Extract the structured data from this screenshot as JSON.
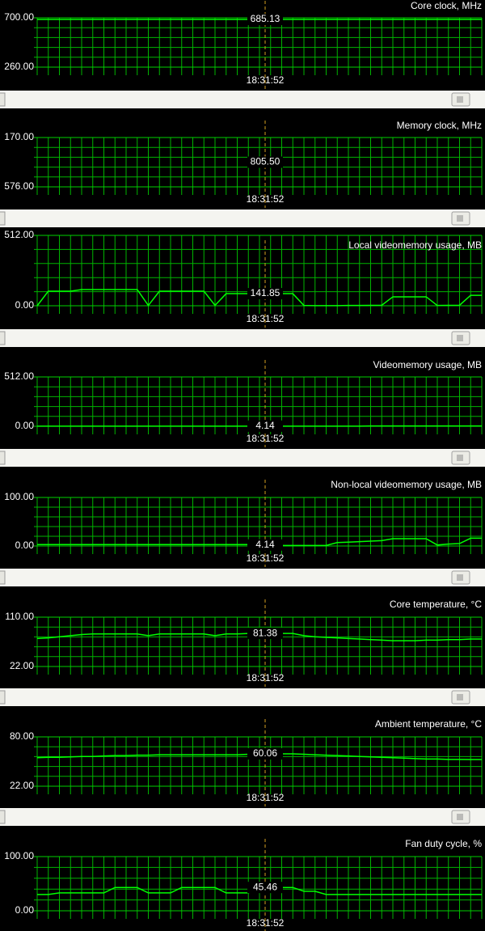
{
  "chart_data": [
    {
      "type": "line",
      "title": "Core clock, MHz",
      "ylim": [
        260,
        700
      ],
      "yticks": [
        {
          "value": 260,
          "label": "260.00"
        },
        {
          "value": 700,
          "label": "700.00"
        }
      ],
      "color": "#00ff00",
      "annotation": "685.13",
      "time": "18:31:52",
      "values": [
        685.13,
        685.13,
        685.13,
        685.13,
        685.13,
        685.13,
        685.13,
        685.13,
        685.13,
        685.13,
        685.13,
        685.13,
        685.13,
        685.13,
        685.13,
        685.13,
        685.13,
        685.13,
        685.13,
        685.13,
        685.13,
        685.13,
        685.13,
        685.13,
        685.13,
        685.13,
        685.13,
        685.13,
        685.13,
        685.13,
        685.13,
        685.13,
        685.13,
        685.13,
        685.13,
        685.13,
        685.13,
        685.13,
        685.13,
        685.13,
        685.13
      ]
    },
    {
      "type": "line",
      "title": "Memory clock, MHz",
      "ylim": [
        576,
        170
      ],
      "yticks": [
        {
          "value": 576,
          "label": "576.00"
        },
        {
          "value": 170,
          "label": "170.00"
        }
      ],
      "color": "#00ff00",
      "annotation": "805.50",
      "time": "18:31:52"
    },
    {
      "type": "line",
      "title": "Local videomemory usage, MB",
      "ylim": [
        0,
        512
      ],
      "yticks": [
        {
          "value": 0,
          "label": "0.00"
        },
        {
          "value": 512,
          "label": "512.00"
        }
      ],
      "color": "#00ff00",
      "annotation": "141.85",
      "time": "18:31:52",
      "values": [
        0,
        106,
        106,
        106,
        118,
        118,
        118,
        118,
        118,
        118,
        2,
        106,
        106,
        106,
        106,
        106,
        3,
        88,
        88,
        88,
        88,
        88,
        88,
        88,
        2,
        1,
        1,
        1,
        2,
        2,
        3,
        4,
        65,
        65,
        65,
        65,
        2,
        3,
        4,
        76,
        76
      ]
    },
    {
      "type": "line",
      "title": "Videomemory usage, MB",
      "ylim": [
        0,
        512
      ],
      "yticks": [
        {
          "value": 0,
          "label": "0.00"
        },
        {
          "value": 512,
          "label": "512.00"
        }
      ],
      "color": "#00ff00",
      "annotation": "4.14",
      "time": "18:31:52",
      "values": [
        1,
        1,
        1,
        1,
        1,
        1,
        1,
        1,
        1,
        1,
        1,
        1,
        1,
        1,
        1,
        1,
        1,
        1,
        1,
        1,
        1,
        1,
        1,
        1,
        1,
        1,
        1,
        1,
        1,
        1,
        3,
        3,
        3,
        3,
        3,
        3,
        3,
        3,
        3,
        3,
        3
      ]
    },
    {
      "type": "line",
      "title": "Non-local videomemory usage, MB",
      "ylim": [
        0,
        100
      ],
      "yticks": [
        {
          "value": 0,
          "label": "0.00"
        },
        {
          "value": 100,
          "label": "100.00"
        }
      ],
      "color": "#00ff00",
      "annotation": "4.14",
      "time": "18:31:52",
      "values": [
        3,
        3,
        3,
        3,
        3,
        3,
        3,
        3,
        3,
        3,
        3,
        3,
        3,
        3,
        3,
        3,
        3,
        3,
        3,
        3,
        3,
        1,
        1,
        1,
        1,
        1,
        1,
        7,
        8,
        9,
        10,
        11,
        15,
        15,
        15,
        15,
        2,
        4,
        5,
        16,
        16
      ]
    },
    {
      "type": "line",
      "title": "Core temperature, °C",
      "ylim": [
        22,
        110
      ],
      "yticks": [
        {
          "value": 22,
          "label": "22.00"
        },
        {
          "value": 110,
          "label": "110.00"
        }
      ],
      "color": "#00ff00",
      "annotation": "81.38",
      "time": "18:31:52",
      "values": [
        72,
        73,
        75,
        77,
        79,
        80,
        80,
        80,
        80,
        80,
        77,
        80,
        80,
        80,
        80,
        80,
        77,
        80,
        80,
        81,
        81,
        81,
        81,
        81,
        77,
        75,
        74,
        73,
        72,
        71,
        70,
        69,
        68,
        68,
        68,
        69,
        69,
        70,
        70,
        71,
        71
      ]
    },
    {
      "type": "line",
      "title": "Ambient temperature, °C",
      "ylim": [
        22,
        80
      ],
      "yticks": [
        {
          "value": 22,
          "label": "22.00"
        },
        {
          "value": 80,
          "label": "80.00"
        }
      ],
      "color": "#00ff00",
      "annotation": "60.06",
      "time": "18:31:52",
      "values": [
        55.5,
        56,
        56,
        56.5,
        57,
        57,
        57.5,
        58,
        58,
        58.5,
        58.5,
        59,
        59,
        59,
        59,
        59,
        59,
        59,
        59,
        59.5,
        60,
        60,
        60,
        60,
        59.5,
        59,
        58.5,
        58,
        57.5,
        57,
        56.5,
        56,
        55.5,
        55,
        54.5,
        54,
        54,
        53.5,
        53.5,
        53.4,
        53.4
      ]
    },
    {
      "type": "line",
      "title": "Fan duty cycle, %",
      "ylim": [
        0,
        100
      ],
      "yticks": [
        {
          "value": 0,
          "label": "0.00"
        },
        {
          "value": 100,
          "label": "100.00"
        }
      ],
      "color": "#00ff00",
      "annotation": "45.46",
      "time": "18:31:52",
      "values": [
        30,
        30,
        33,
        33,
        33,
        33,
        33,
        43,
        43,
        43,
        33,
        33,
        33,
        43,
        43,
        43,
        43,
        33,
        33,
        33,
        43,
        43,
        43,
        43,
        36,
        36,
        30,
        30,
        30,
        30,
        30,
        30,
        30,
        30,
        30,
        30,
        30,
        30,
        30,
        30,
        30
      ]
    }
  ]
}
